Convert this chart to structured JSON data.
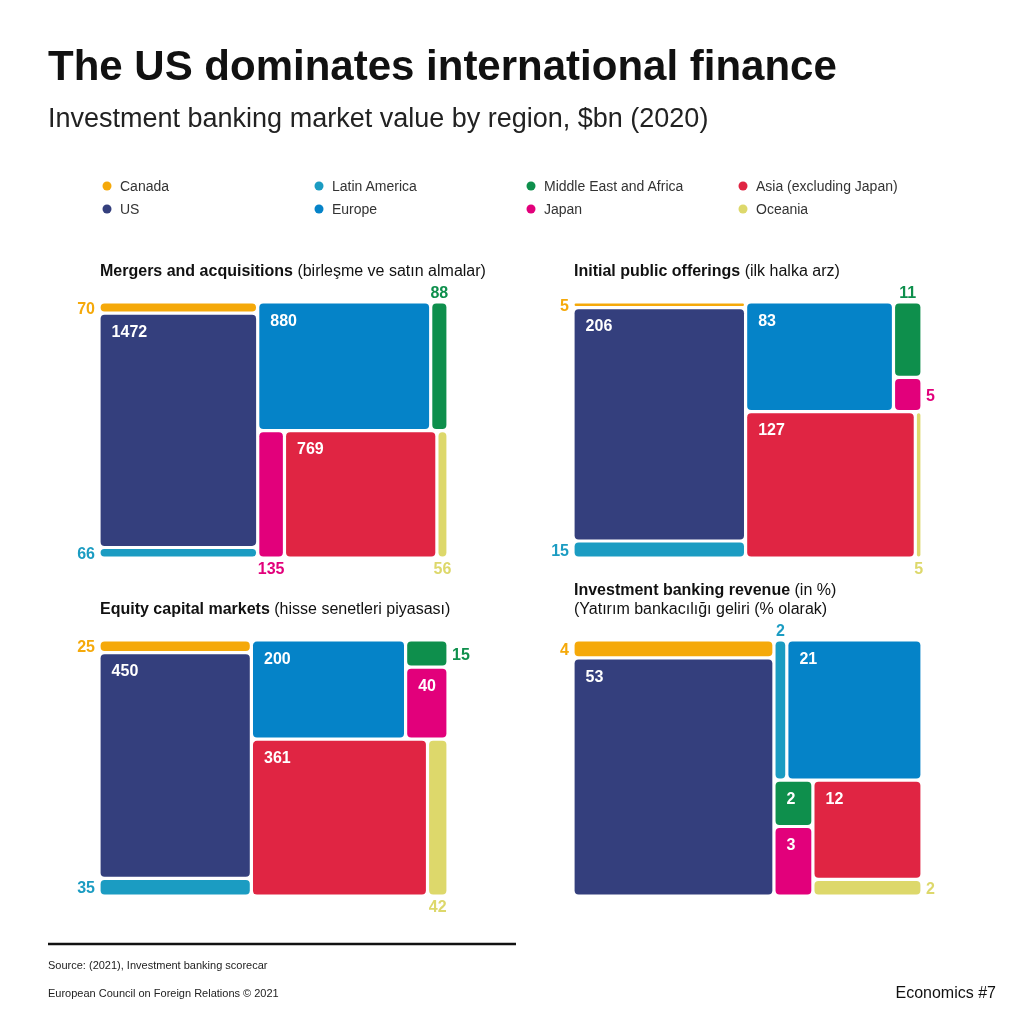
{
  "chart_data": [
    {
      "type": "other",
      "title": "The US dominates international finance",
      "subtitle": "Investment banking market value by region, $bn (2020)"
    },
    {
      "type": "other",
      "categories": [
        "Mergers and acquisitions (birleşme ve satın almalar)"
      ],
      "legend": "top",
      "data_labels": true,
      "series": [
        {
          "name": "Canada",
          "color": "#f5a90a",
          "values": [
            70
          ]
        },
        {
          "name": "US",
          "color": "#343f7d",
          "values": [
            1472
          ]
        },
        {
          "name": "Latin America",
          "color": "#1b9cc2",
          "values": [
            66
          ]
        },
        {
          "name": "Europe",
          "color": "#0583c8",
          "values": [
            880
          ]
        },
        {
          "name": "Middle East and Africa",
          "color": "#0e8f4c",
          "values": [
            88
          ]
        },
        {
          "name": "Japan",
          "color": "#e2007b",
          "values": [
            135
          ]
        },
        {
          "name": "Asia (excluding Japan)",
          "color": "#e02543",
          "values": [
            769
          ]
        },
        {
          "name": "Oceania",
          "color": "#ddd86b",
          "values": [
            56
          ]
        }
      ]
    },
    {
      "type": "other",
      "categories": [
        "Initial public offerings (ilk halka arz)"
      ],
      "data_labels": true,
      "series": [
        {
          "color": "#f5a90a",
          "values": [
            5
          ]
        },
        {
          "color": "#343f7d",
          "values": [
            206
          ]
        },
        {
          "color": "#1b9cc2",
          "values": [
            15
          ]
        },
        {
          "color": "#0583c8",
          "values": [
            83
          ]
        },
        {
          "color": "#0e8f4c",
          "values": [
            11
          ]
        },
        {
          "color": "#e2007b",
          "values": [
            5
          ]
        },
        {
          "color": "#e02543",
          "values": [
            127
          ]
        },
        {
          "color": "#ddd86b",
          "values": [
            5
          ]
        }
      ]
    },
    {
      "type": "other",
      "categories": [
        "Equity capital markets (hisse senetleri piyasası)"
      ],
      "data_labels": true,
      "series": [
        {
          "color": "#f5a90a",
          "values": [
            25
          ]
        },
        {
          "color": "#343f7d",
          "values": [
            450
          ]
        },
        {
          "color": "#1b9cc2",
          "values": [
            35
          ]
        },
        {
          "color": "#0583c8",
          "values": [
            200
          ]
        },
        {
          "color": "#0e8f4c",
          "values": [
            15
          ]
        },
        {
          "color": "#e2007b",
          "values": [
            40
          ]
        },
        {
          "color": "#e02543",
          "values": [
            361
          ]
        },
        {
          "color": "#ddd86b",
          "values": [
            42
          ]
        }
      ]
    },
    {
      "type": "other",
      "categories": [
        "Investment banking revenue (in %) (Yatırım bankacılığı geliri (% olarak)"
      ],
      "data_labels": true,
      "series": [
        {
          "color": "#f5a90a",
          "values": [
            4
          ]
        },
        {
          "color": "#343f7d",
          "values": [
            53
          ]
        },
        {
          "color": "#1b9cc2",
          "values": [
            2
          ]
        },
        {
          "color": "#0583c8",
          "values": [
            21
          ]
        },
        {
          "color": "#0e8f4c",
          "values": [
            2
          ]
        },
        {
          "color": "#e2007b",
          "values": [
            3
          ]
        },
        {
          "color": "#e02543",
          "values": [
            12
          ]
        },
        {
          "color": "#ddd86b",
          "values": [
            2
          ]
        }
      ]
    },
    {
      "type": "other",
      "annotations": [
        "Source: (2021), Investment banking scorecar",
        "European Council on Foreign Relations © 2021",
        "Economics #7"
      ]
    }
  ]
}
